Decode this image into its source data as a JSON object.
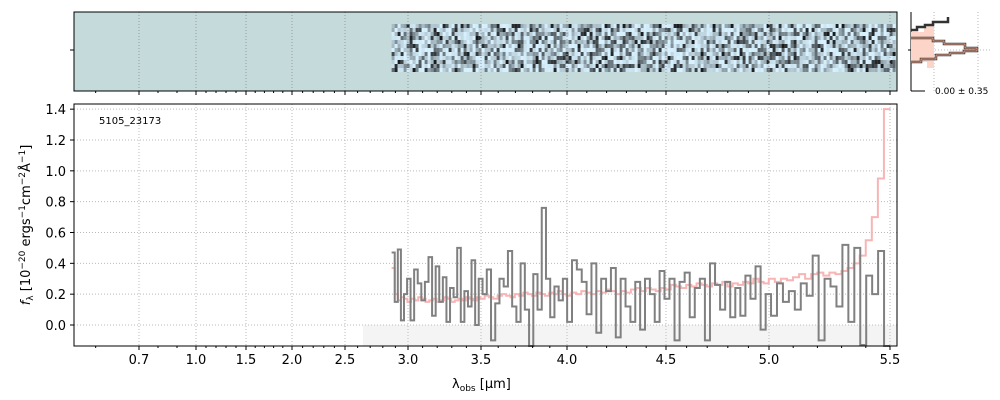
{
  "chart_data": {
    "type": "line",
    "object_label": "5105_23173",
    "xlabel_main": "λ",
    "xlabel_sub": "obs",
    "xlabel_unit": " [μm]",
    "ylabel": "f_λ [10^-20 ergs^-1 cm^-2 Å^-1]",
    "ylabel_parts": [
      "f",
      "λ",
      " [10",
      "−20",
      " ergs",
      "−1",
      "cm",
      "−2",
      "Å",
      "−1",
      "]"
    ],
    "xticks": [
      0.7,
      1.0,
      1.5,
      2.0,
      2.5,
      3.0,
      3.5,
      4.0,
      4.5,
      5.0,
      5.5
    ],
    "xtick_labels": [
      "0.7",
      "1.0",
      "1.5",
      "2.0",
      "2.5",
      "3.0",
      "3.5",
      "4.0",
      "4.5",
      "5.0",
      "5.5"
    ],
    "yticks": [
      0.0,
      0.2,
      0.4,
      0.6,
      0.8,
      1.0,
      1.2,
      1.4
    ],
    "ytick_labels": [
      "0.0",
      "0.2",
      "0.4",
      "0.6",
      "0.8",
      "1.0",
      "1.2",
      "1.4"
    ],
    "ylim": [
      -0.14,
      1.42
    ],
    "grid": true,
    "data_start": 2.87,
    "data_end": 5.5,
    "flux": [
      0.47,
      0.15,
      0.49,
      0.03,
      0.2,
      0.3,
      0.03,
      0.36,
      0.27,
      0.16,
      0.28,
      0.44,
      0.06,
      0.38,
      0.15,
      0.31,
      0.02,
      0.24,
      0.18,
      0.5,
      0.02,
      0.22,
      0.12,
      0.42,
      0.0,
      0.3,
      0.2,
      0.36,
      -0.1,
      0.14,
      0.3,
      0.25,
      0.48,
      0.12,
      0.02,
      0.4,
      0.1,
      -0.14,
      0.33,
      0.1,
      0.76,
      0.3,
      0.05,
      0.25,
      0.16,
      0.3,
      0.02,
      0.42,
      0.36,
      0.28,
      0.07,
      0.4,
      -0.05,
      0.3,
      0.22,
      0.37,
      -0.08,
      0.3,
      0.12,
      0.02,
      0.28,
      -0.03,
      0.3,
      0.2,
      0.02,
      0.35,
      0.17,
      0.3,
      -0.1,
      0.28,
      0.34,
      0.05,
      0.24,
      0.3,
      -0.1,
      0.4,
      0.26,
      0.1,
      0.28,
      0.05,
      0.24,
      0.06,
      0.32,
      0.17,
      0.38,
      -0.03,
      0.2,
      0.06,
      0.27,
      0.15,
      0.22,
      0.1,
      0.27,
      0.19,
      0.45,
      -0.1,
      0.3,
      0.25,
      0.12,
      0.52,
      0.02,
      0.5,
      -0.13,
      0.32,
      0.2,
      0.48,
      -0.15
    ],
    "model": [
      0.37,
      0.2,
      0.16,
      0.18,
      0.17,
      0.15,
      0.17,
      0.16,
      0.18,
      0.17,
      0.15,
      0.16,
      0.17,
      0.15,
      0.16,
      0.18,
      0.17,
      0.15,
      0.16,
      0.17,
      0.16,
      0.18,
      0.17,
      0.16,
      0.18,
      0.17,
      0.19,
      0.18,
      0.17,
      0.19,
      0.2,
      0.19,
      0.18,
      0.2,
      0.19,
      0.21,
      0.2,
      0.19,
      0.21,
      0.2,
      0.19,
      0.21,
      0.2,
      0.22,
      0.2,
      0.19,
      0.21,
      0.2,
      0.22,
      0.21,
      0.2,
      0.22,
      0.21,
      0.23,
      0.22,
      0.2,
      0.22,
      0.21,
      0.23,
      0.24,
      0.22,
      0.24,
      0.23,
      0.22,
      0.24,
      0.23,
      0.26,
      0.25,
      0.24,
      0.26,
      0.25,
      0.27,
      0.26,
      0.25,
      0.27,
      0.26,
      0.28,
      0.25,
      0.27,
      0.26,
      0.28,
      0.27,
      0.3,
      0.28,
      0.27,
      0.3,
      0.28,
      0.3,
      0.29,
      0.31,
      0.33,
      0.3,
      0.33,
      0.34,
      0.32,
      0.34,
      0.33,
      0.35,
      0.37,
      0.4,
      0.45,
      0.55,
      0.7,
      0.95,
      1.4
    ],
    "histogram": {
      "label": "0.00 ± 0.35"
    },
    "colors": {
      "data": "#808080",
      "model": "#f4a5a5",
      "image_bg": "#c5dbdb",
      "hist_line": "#333333",
      "hist_fill": "#fcd5c8"
    }
  }
}
